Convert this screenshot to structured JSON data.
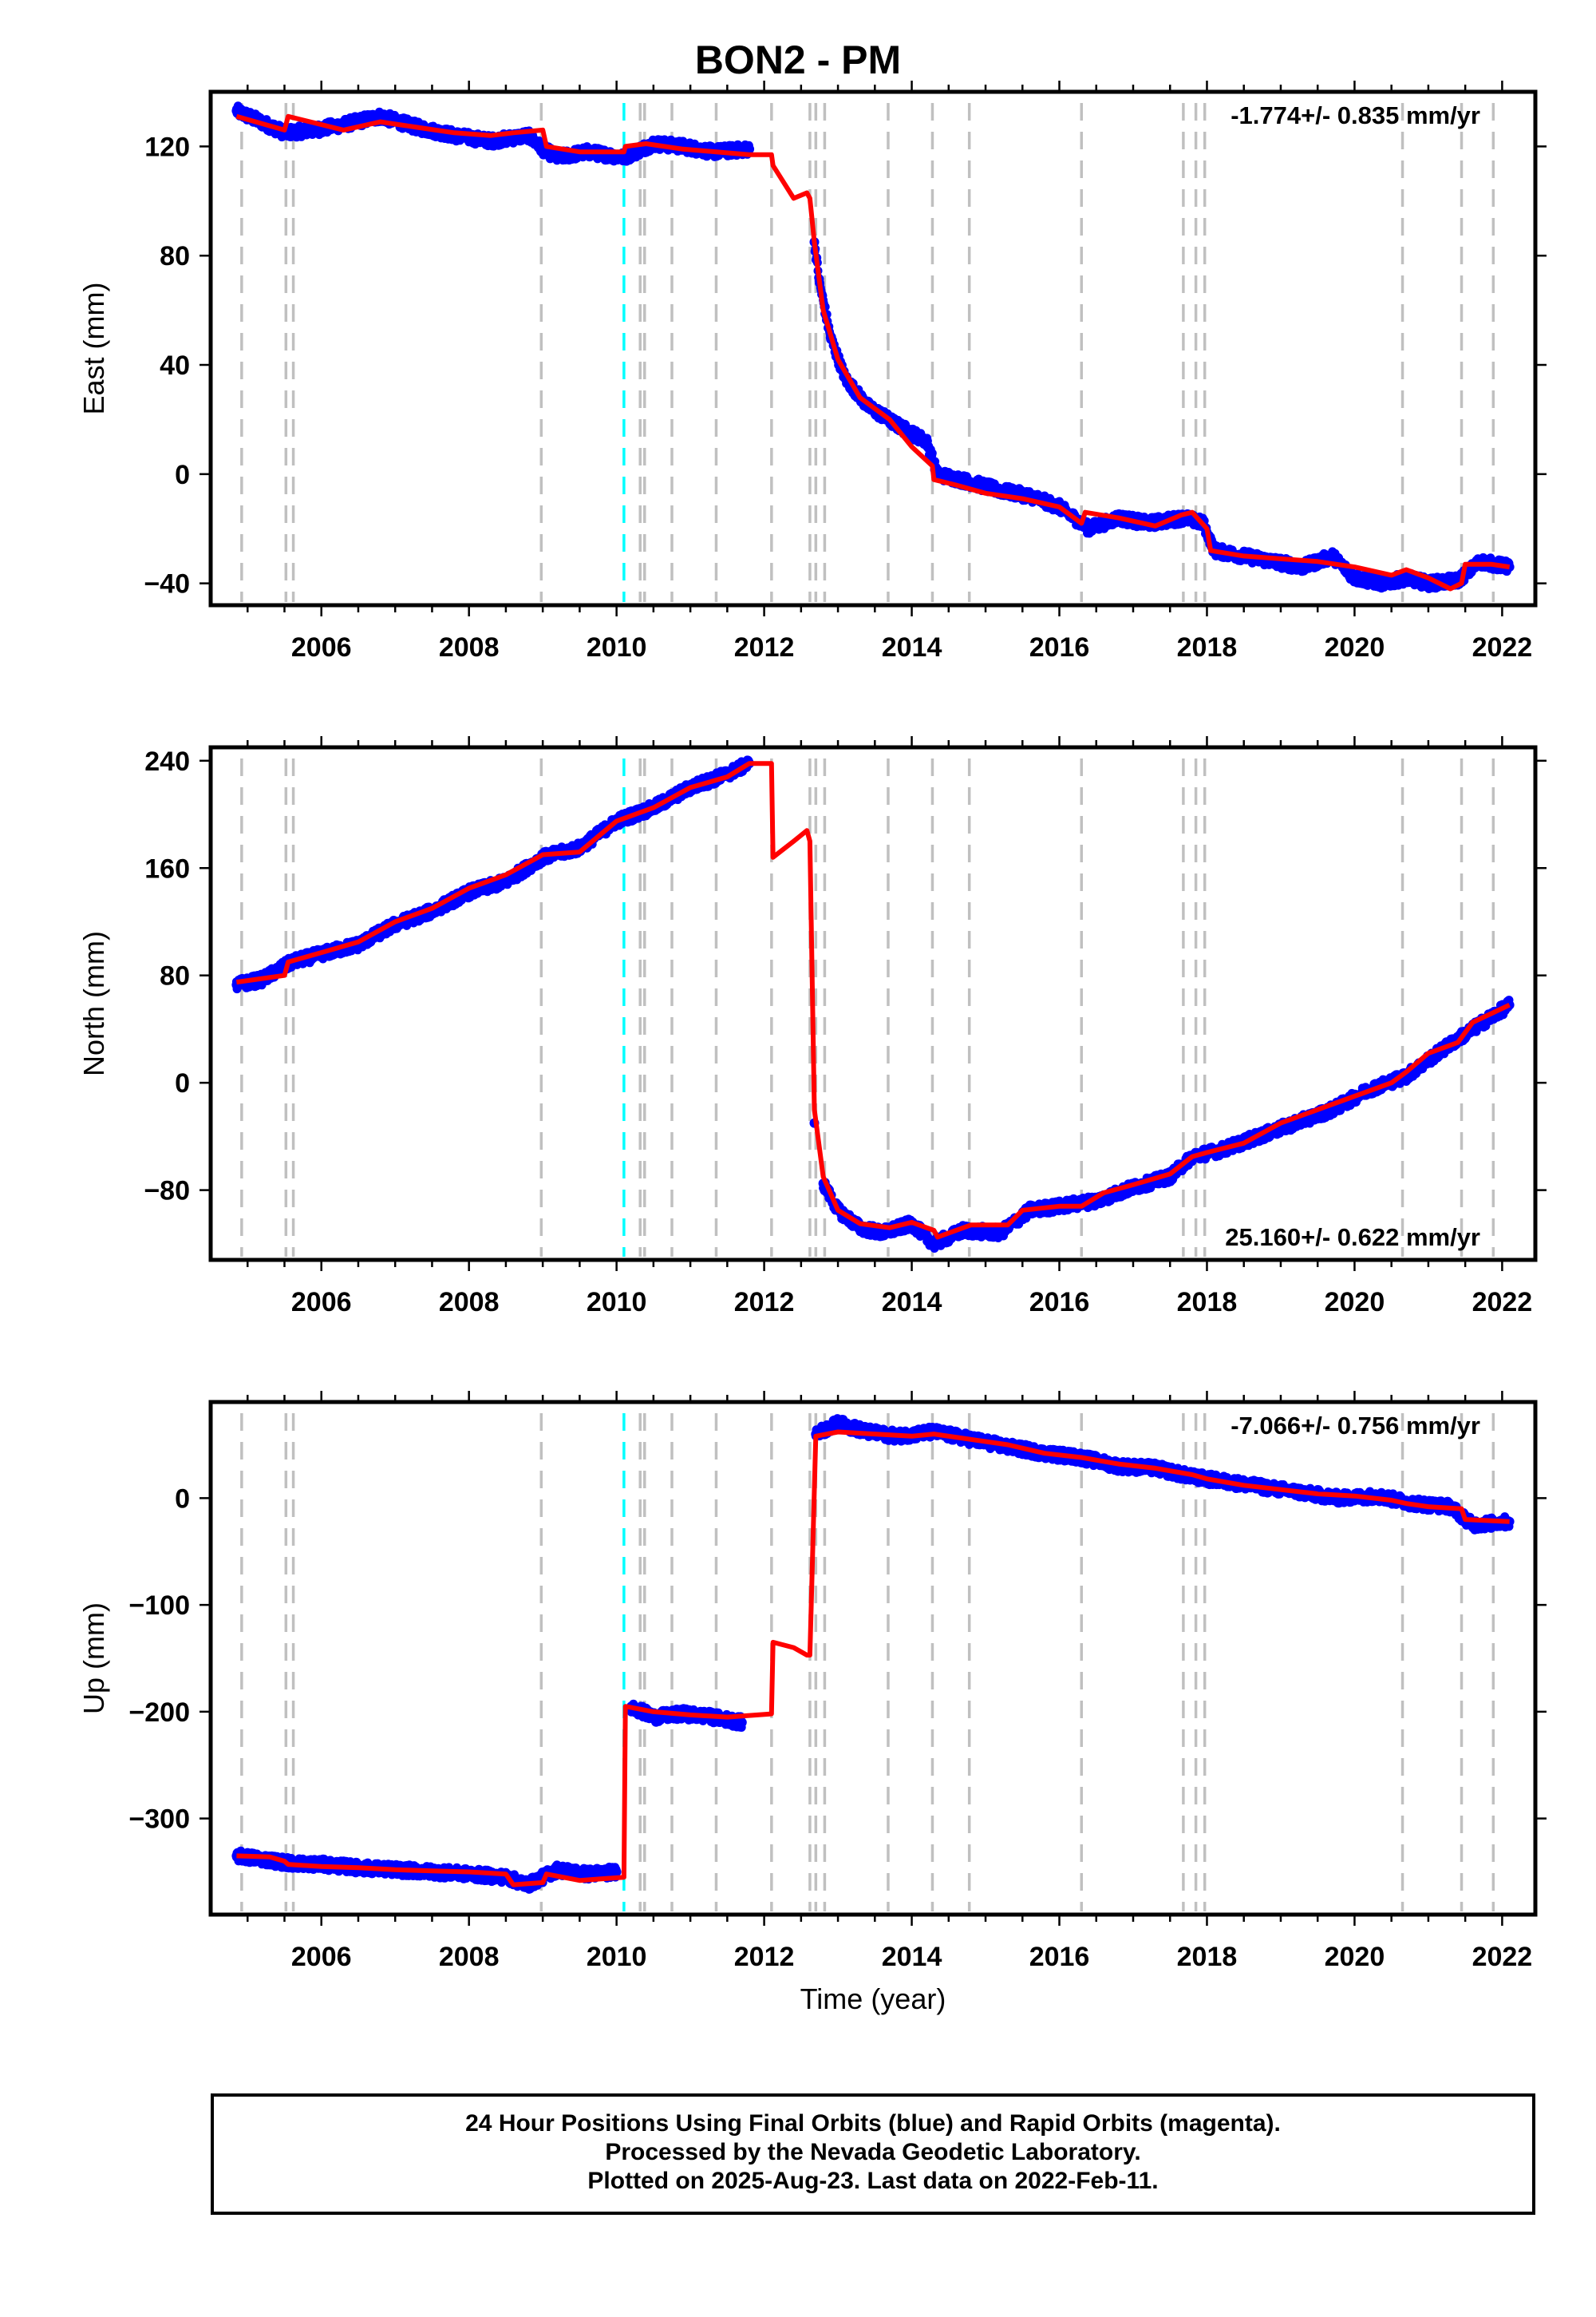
{
  "title": "BON2 - PM",
  "xlabel": "Time (year)",
  "footer": {
    "line1": "24 Hour Positions Using Final Orbits (blue) and Rapid Orbits (magenta).",
    "line2": "Processed by the Nevada Geodetic Laboratory.",
    "line3": "Plotted on 2025-Aug-23. Last data on 2022-Feb-11."
  },
  "colors": {
    "data": "#0000ff",
    "model": "#ff0000",
    "event_line": "#c0c0c0",
    "highlight_line": "#00ffff"
  },
  "chart_data": [
    {
      "type": "scatter",
      "ylabel": "East (mm)",
      "rate": "-1.774+/- 0.835 mm/yr",
      "xlim": [
        2004.5,
        2022.45
      ],
      "ylim": [
        -48,
        140
      ],
      "xticks": [
        2006,
        2008,
        2010,
        2012,
        2014,
        2016,
        2018,
        2020,
        2022
      ],
      "yticks": [
        -40,
        0,
        40,
        80,
        120
      ],
      "series": [
        {
          "values_kind": "data",
          "x": [
            2004.85,
            2005.1,
            2005.5,
            2005.9,
            2006.3,
            2006.8,
            2007.3,
            2007.8,
            2008.3,
            2008.8,
            2009.0,
            2009.2,
            2009.6,
            2010.1,
            2010.5,
            2010.9,
            2011.3,
            2011.8,
            2012.68,
            2012.75,
            2012.9,
            2013.1,
            2013.4,
            2013.8,
            2014.2,
            2014.35,
            2014.8,
            2015.2,
            2015.6,
            2016.0,
            2016.4,
            2016.8,
            2017.2,
            2017.7,
            2017.95,
            2018.1,
            2018.5,
            2018.9,
            2019.3,
            2019.7,
            2020.0,
            2020.4,
            2020.7,
            2021.0,
            2021.4,
            2021.7,
            2022.1
          ],
          "y": [
            133,
            130,
            125,
            126,
            128,
            131,
            127,
            124,
            122,
            124,
            119,
            116,
            118,
            116,
            121,
            120,
            118,
            119,
            85,
            70,
            50,
            35,
            25,
            18,
            12,
            0,
            -3,
            -6,
            -8,
            -12,
            -20,
            -16,
            -18,
            -16,
            -18,
            -28,
            -30,
            -32,
            -34,
            -30,
            -38,
            -40,
            -38,
            -40,
            -39,
            -32,
            -34
          ]
        },
        {
          "values_kind": "model",
          "x": [
            2004.85,
            2005.5,
            2005.55,
            2006.3,
            2006.8,
            2007.3,
            2007.8,
            2008.3,
            2008.6,
            2009.0,
            2009.05,
            2009.5,
            2010.1,
            2010.12,
            2010.4,
            2010.9,
            2011.35,
            2011.8,
            2012.1,
            2012.12,
            2012.4,
            2012.58,
            2012.62,
            2012.68,
            2012.8,
            2013.0,
            2013.3,
            2013.7,
            2014.0,
            2014.28,
            2014.3,
            2014.6,
            2015.0,
            2015.5,
            2016.0,
            2016.3,
            2016.35,
            2016.8,
            2017.3,
            2017.65,
            2017.8,
            2018.0,
            2018.05,
            2018.5,
            2019.0,
            2019.5,
            2020.0,
            2020.5,
            2020.7,
            2021.0,
            2021.3,
            2021.45,
            2021.5,
            2021.85,
            2022.1
          ],
          "y": [
            131,
            126,
            131,
            126,
            129,
            127,
            125,
            124,
            125,
            126,
            120,
            118,
            118,
            120,
            121,
            119,
            118,
            117,
            117,
            113,
            101,
            103,
            101,
            85,
            60,
            42,
            28,
            20,
            10,
            3,
            -2,
            -4,
            -7,
            -9,
            -12,
            -18,
            -14,
            -16,
            -19,
            -15,
            -14,
            -20,
            -28,
            -30,
            -31,
            -32,
            -34,
            -37,
            -35,
            -38,
            -42,
            -40,
            -33,
            -33,
            -34
          ]
        }
      ]
    },
    {
      "type": "scatter",
      "ylabel": "North (mm)",
      "rate": "25.160+/- 0.622 mm/yr",
      "xlim": [
        2004.5,
        2022.45
      ],
      "ylim": [
        -132,
        250
      ],
      "xticks": [
        2006,
        2008,
        2010,
        2012,
        2014,
        2016,
        2018,
        2020,
        2022
      ],
      "yticks": [
        -80,
        0,
        80,
        160,
        240
      ],
      "series": [
        {
          "values_kind": "data",
          "x": [
            2004.85,
            2005.2,
            2005.6,
            2006.0,
            2006.5,
            2007.0,
            2007.5,
            2008.0,
            2008.5,
            2009.0,
            2009.5,
            2010.0,
            2010.5,
            2011.0,
            2011.5,
            2011.8,
            2012.68,
            2012.8,
            2013.0,
            2013.3,
            2013.6,
            2014.0,
            2014.3,
            2014.7,
            2015.2,
            2015.6,
            2016.0,
            2016.5,
            2017.0,
            2017.5,
            2017.8,
            2018.2,
            2018.7,
            2019.2,
            2019.7,
            2020.2,
            2020.7,
            2021.2,
            2021.6,
            2022.1
          ],
          "y": [
            73,
            77,
            90,
            96,
            103,
            118,
            128,
            142,
            150,
            168,
            175,
            195,
            205,
            220,
            230,
            238,
            -30,
            -75,
            -95,
            -108,
            -112,
            -105,
            -120,
            -110,
            -112,
            -95,
            -92,
            -88,
            -78,
            -70,
            -55,
            -50,
            -40,
            -30,
            -20,
            -5,
            5,
            25,
            40,
            58
          ]
        },
        {
          "values_kind": "model",
          "x": [
            2004.85,
            2005.5,
            2005.55,
            2006.0,
            2006.5,
            2007.0,
            2007.5,
            2008.0,
            2008.5,
            2009.0,
            2009.5,
            2010.0,
            2010.5,
            2011.0,
            2011.5,
            2011.8,
            2012.1,
            2012.12,
            2012.4,
            2012.58,
            2012.62,
            2012.68,
            2012.8,
            2013.0,
            2013.3,
            2013.7,
            2014.0,
            2014.3,
            2014.35,
            2014.8,
            2015.3,
            2015.5,
            2016.0,
            2016.3,
            2016.6,
            2017.0,
            2017.5,
            2017.8,
            2018.0,
            2018.5,
            2019.0,
            2019.5,
            2020.0,
            2020.5,
            2020.7,
            2021.0,
            2021.4,
            2021.6,
            2022.1
          ],
          "y": [
            75,
            80,
            90,
            97,
            105,
            120,
            130,
            145,
            155,
            170,
            172,
            195,
            205,
            220,
            228,
            238,
            238,
            168,
            180,
            188,
            180,
            -20,
            -70,
            -95,
            -105,
            -108,
            -104,
            -110,
            -115,
            -106,
            -106,
            -95,
            -92,
            -92,
            -82,
            -76,
            -68,
            -55,
            -52,
            -45,
            -30,
            -20,
            -10,
            0,
            8,
            22,
            30,
            45,
            58
          ]
        }
      ]
    },
    {
      "type": "scatter",
      "ylabel": "Up (mm)",
      "rate": "-7.066+/- 0.756 mm/yr",
      "xlim": [
        2004.5,
        2022.45
      ],
      "ylim": [
        -390,
        90
      ],
      "xticks": [
        2006,
        2008,
        2010,
        2012,
        2014,
        2016,
        2018,
        2020,
        2022
      ],
      "yticks": [
        -300,
        -200,
        -100,
        0
      ],
      "series": [
        {
          "values_kind": "data",
          "x": [
            2004.85,
            2005.2,
            2005.6,
            2006.0,
            2006.5,
            2007.0,
            2007.5,
            2008.0,
            2008.5,
            2008.8,
            2009.2,
            2009.6,
            2010.0,
            2010.2,
            2010.5,
            2010.9,
            2011.3,
            2011.7,
            2012.7,
            2013.0,
            2013.4,
            2013.8,
            2014.3,
            2014.8,
            2015.3,
            2015.8,
            2016.3,
            2016.8,
            2017.3,
            2017.8,
            2018.3,
            2018.8,
            2019.3,
            2019.8,
            2020.3,
            2020.8,
            2021.3,
            2021.6,
            2022.1
          ],
          "y": [
            -335,
            -338,
            -342,
            -343,
            -346,
            -348,
            -350,
            -352,
            -355,
            -362,
            -348,
            -352,
            -350,
            -195,
            -205,
            -202,
            -205,
            -210,
            60,
            70,
            62,
            58,
            62,
            55,
            48,
            42,
            38,
            30,
            28,
            20,
            15,
            10,
            5,
            0,
            2,
            -5,
            -8,
            -25,
            -22
          ]
        },
        {
          "values_kind": "model",
          "x": [
            2004.85,
            2005.3,
            2005.5,
            2005.55,
            2006.0,
            2006.5,
            2007.0,
            2007.5,
            2008.0,
            2008.5,
            2008.6,
            2009.0,
            2009.05,
            2009.5,
            2010.1,
            2010.12,
            2010.5,
            2011.0,
            2011.5,
            2012.1,
            2012.12,
            2012.4,
            2012.58,
            2012.62,
            2012.7,
            2013.0,
            2013.5,
            2014.0,
            2014.3,
            2014.8,
            2015.3,
            2015.8,
            2016.3,
            2016.8,
            2017.3,
            2017.8,
            2018.0,
            2018.5,
            2019.0,
            2019.5,
            2020.0,
            2020.5,
            2020.7,
            2021.0,
            2021.45,
            2021.5,
            2022.1
          ],
          "y": [
            -335,
            -336,
            -340,
            -343,
            -345,
            -346,
            -348,
            -349,
            -350,
            -352,
            -362,
            -360,
            -352,
            -358,
            -355,
            -195,
            -200,
            -203,
            -205,
            -202,
            -135,
            -140,
            -147,
            -147,
            58,
            62,
            60,
            58,
            60,
            55,
            50,
            42,
            38,
            32,
            28,
            22,
            18,
            12,
            8,
            4,
            2,
            -2,
            -5,
            -8,
            -10,
            -20,
            -22
          ]
        }
      ]
    }
  ],
  "event_lines": {
    "gray": [
      2004.92,
      2005.52,
      2005.62,
      2008.98,
      2010.32,
      2010.38,
      2010.75,
      2011.35,
      2012.1,
      2012.62,
      2012.7,
      2012.82,
      2013.68,
      2014.28,
      2014.78,
      2016.3,
      2017.68,
      2017.85,
      2017.97,
      2020.65,
      2021.45,
      2021.88
    ],
    "cyan": [
      2010.1
    ]
  }
}
